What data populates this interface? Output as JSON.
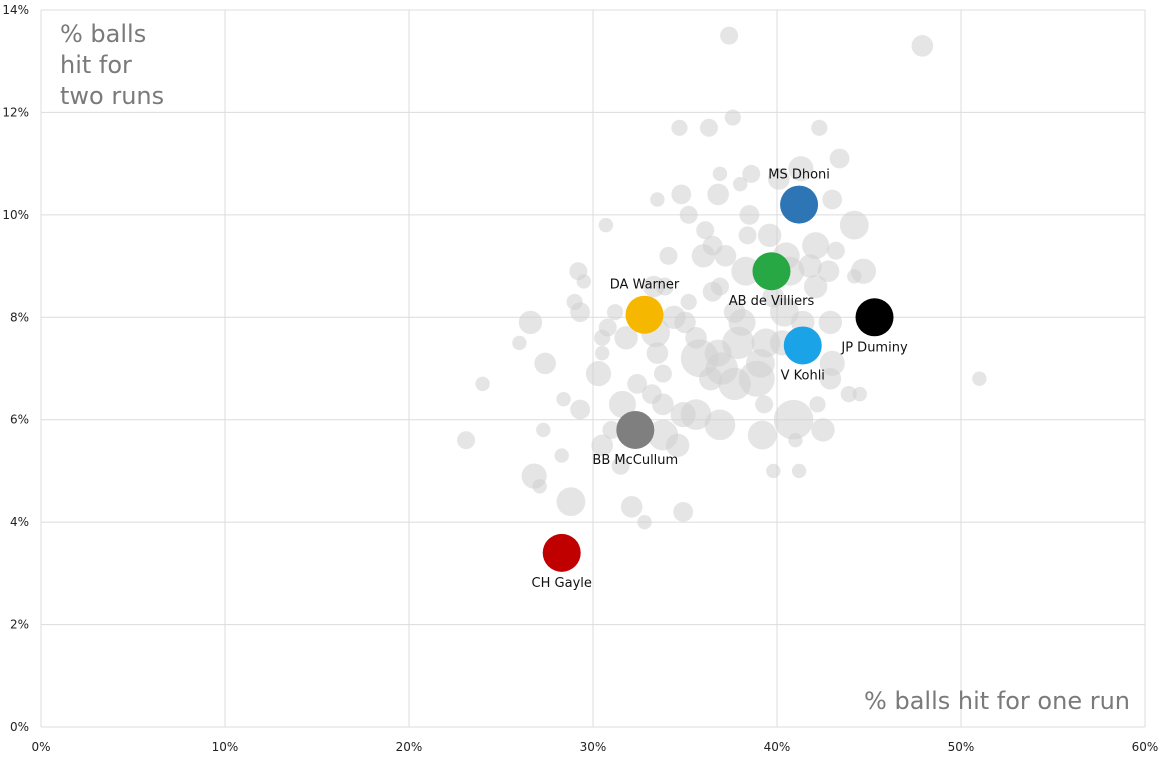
{
  "chart_data": {
    "type": "scatter",
    "xlabel": "% balls hit for one run",
    "ylabel": [
      "% balls",
      "hit for",
      "two runs"
    ],
    "xlim": [
      0,
      60
    ],
    "ylim": [
      0,
      14
    ],
    "x_ticks": [
      0,
      10,
      20,
      30,
      40,
      50,
      60
    ],
    "y_ticks": [
      0,
      2,
      4,
      6,
      8,
      10,
      12,
      14
    ],
    "x_tick_labels": [
      "0%",
      "10%",
      "20%",
      "30%",
      "40%",
      "50%",
      "60%"
    ],
    "y_tick_labels": [
      "0%",
      "2%",
      "4%",
      "6%",
      "8%",
      "10%",
      "12%",
      "14%"
    ],
    "grid": true,
    "background_points_color": "#cfcfcf",
    "background_points": [
      [
        37.4,
        13.5,
        1
      ],
      [
        47.9,
        13.3,
        1.2
      ],
      [
        37.6,
        11.9,
        0.9
      ],
      [
        34.7,
        11.7,
        0.9
      ],
      [
        36.3,
        11.7,
        1
      ],
      [
        42.3,
        11.7,
        0.9
      ],
      [
        43.4,
        11.1,
        1.1
      ],
      [
        41.3,
        10.9,
        1.4
      ],
      [
        38.6,
        10.8,
        1
      ],
      [
        40.1,
        10.7,
        1.2
      ],
      [
        36.9,
        10.8,
        0.8
      ],
      [
        38.0,
        10.6,
        0.8
      ],
      [
        36.8,
        10.4,
        1.2
      ],
      [
        34.8,
        10.4,
        1.1
      ],
      [
        33.5,
        10.3,
        0.8
      ],
      [
        43.0,
        10.3,
        1.1
      ],
      [
        38.5,
        10.0,
        1.1
      ],
      [
        35.2,
        10.0,
        1
      ],
      [
        30.7,
        9.8,
        0.8
      ],
      [
        44.2,
        9.8,
        1.6
      ],
      [
        38.4,
        9.6,
        1
      ],
      [
        36.1,
        9.7,
        1
      ],
      [
        39.6,
        9.6,
        1.3
      ],
      [
        36.5,
        9.4,
        1.1
      ],
      [
        42.1,
        9.4,
        1.5
      ],
      [
        43.2,
        9.3,
        1
      ],
      [
        37.2,
        9.2,
        1.2
      ],
      [
        36.0,
        9.2,
        1.3
      ],
      [
        34.1,
        9.2,
        1
      ],
      [
        40.5,
        9.2,
        1.5
      ],
      [
        41.8,
        9.0,
        1.3
      ],
      [
        40.7,
        8.9,
        1.6
      ],
      [
        42.8,
        8.9,
        1.2
      ],
      [
        44.7,
        8.9,
        1.4
      ],
      [
        44.2,
        8.8,
        0.8
      ],
      [
        38.3,
        8.9,
        1.6
      ],
      [
        29.2,
        8.9,
        1
      ],
      [
        29.5,
        8.7,
        0.8
      ],
      [
        36.9,
        8.6,
        1
      ],
      [
        33.3,
        8.6,
        1.2
      ],
      [
        33.9,
        8.6,
        1
      ],
      [
        42.1,
        8.6,
        1.3
      ],
      [
        36.5,
        8.5,
        1.1
      ],
      [
        35.2,
        8.3,
        0.9
      ],
      [
        29.0,
        8.3,
        0.9
      ],
      [
        29.3,
        8.1,
        1.1
      ],
      [
        31.2,
        8.1,
        0.9
      ],
      [
        34.4,
        8.0,
        1.3
      ],
      [
        35.0,
        7.9,
        1.2
      ],
      [
        38.1,
        7.9,
        1.5
      ],
      [
        26.6,
        7.9,
        1.3
      ],
      [
        30.8,
        7.8,
        1
      ],
      [
        42.9,
        7.9,
        1.3
      ],
      [
        33.4,
        7.7,
        1.6
      ],
      [
        31.8,
        7.6,
        1.3
      ],
      [
        30.5,
        7.6,
        0.9
      ],
      [
        26.0,
        7.5,
        0.8
      ],
      [
        37.9,
        7.5,
        1.8
      ],
      [
        39.4,
        7.5,
        1.6
      ],
      [
        40.3,
        7.5,
        1.4
      ],
      [
        36.8,
        7.3,
        1.5
      ],
      [
        35.8,
        7.2,
        2.1
      ],
      [
        33.5,
        7.3,
        1.2
      ],
      [
        30.5,
        7.3,
        0.8
      ],
      [
        27.4,
        7.1,
        1.2
      ],
      [
        39.1,
        7.1,
        1.6
      ],
      [
        37.0,
        7.0,
        1.8
      ],
      [
        43.0,
        7.1,
        1.4
      ],
      [
        30.3,
        6.9,
        1.4
      ],
      [
        33.8,
        6.9,
        1
      ],
      [
        38.9,
        6.8,
        2
      ],
      [
        36.4,
        6.8,
        1.3
      ],
      [
        42.9,
        6.8,
        1.2
      ],
      [
        51.0,
        6.8,
        0.8
      ],
      [
        24.0,
        6.7,
        0.8
      ],
      [
        37.7,
        6.7,
        1.8
      ],
      [
        32.4,
        6.7,
        1.1
      ],
      [
        33.2,
        6.5,
        1.1
      ],
      [
        43.9,
        6.5,
        0.9
      ],
      [
        28.4,
        6.4,
        0.8
      ],
      [
        44.5,
        6.5,
        0.8
      ],
      [
        31.6,
        6.3,
        1.5
      ],
      [
        39.3,
        6.3,
        1
      ],
      [
        42.2,
        6.3,
        0.9
      ],
      [
        33.8,
        6.3,
        1.2
      ],
      [
        29.3,
        6.2,
        1.1
      ],
      [
        34.9,
        6.1,
        1.4
      ],
      [
        35.6,
        6.1,
        1.7
      ],
      [
        40.9,
        6.0,
        2.2
      ],
      [
        36.9,
        5.9,
        1.7
      ],
      [
        31.0,
        5.8,
        1
      ],
      [
        33.8,
        5.7,
        1.7
      ],
      [
        39.2,
        5.7,
        1.6
      ],
      [
        42.5,
        5.8,
        1.3
      ],
      [
        27.3,
        5.8,
        0.8
      ],
      [
        23.1,
        5.6,
        1
      ],
      [
        30.5,
        5.5,
        1.2
      ],
      [
        34.6,
        5.5,
        1.3
      ],
      [
        41.0,
        5.6,
        0.8
      ],
      [
        28.3,
        5.3,
        0.8
      ],
      [
        31.5,
        5.1,
        1
      ],
      [
        39.8,
        5.0,
        0.8
      ],
      [
        41.2,
        5.0,
        0.8
      ],
      [
        26.8,
        4.9,
        1.4
      ],
      [
        27.1,
        4.7,
        0.8
      ],
      [
        28.8,
        4.4,
        1.6
      ],
      [
        32.1,
        4.3,
        1.2
      ],
      [
        34.9,
        4.2,
        1.1
      ],
      [
        32.8,
        4.0,
        0.8
      ],
      [
        40.4,
        8.1,
        1.6
      ],
      [
        41.4,
        7.9,
        1.3
      ],
      [
        39.8,
        8.4,
        1.2
      ],
      [
        37.7,
        8.1,
        1.2
      ],
      [
        35.6,
        7.6,
        1.2
      ]
    ],
    "highlighted": [
      {
        "label": "MS Dhoni",
        "x": 41.2,
        "y": 10.2,
        "color": "#2e75b6",
        "label_pos": "above"
      },
      {
        "label": "AB de Villiers",
        "x": 39.7,
        "y": 8.9,
        "color": "#27a844",
        "label_pos": "below"
      },
      {
        "label": "DA Warner",
        "x": 32.8,
        "y": 8.05,
        "color": "#f5b700",
        "label_pos": "above"
      },
      {
        "label": "JP Duminy",
        "x": 45.3,
        "y": 8.0,
        "color": "#000000",
        "label_pos": "below"
      },
      {
        "label": "V Kohli",
        "x": 41.4,
        "y": 7.45,
        "color": "#1aa3e6",
        "label_pos": "below"
      },
      {
        "label": "BB McCullum",
        "x": 32.3,
        "y": 5.8,
        "color": "#7f7f7f",
        "label_pos": "below"
      },
      {
        "label": "CH Gayle",
        "x": 28.3,
        "y": 3.4,
        "color": "#c00000",
        "label_pos": "below"
      }
    ]
  }
}
